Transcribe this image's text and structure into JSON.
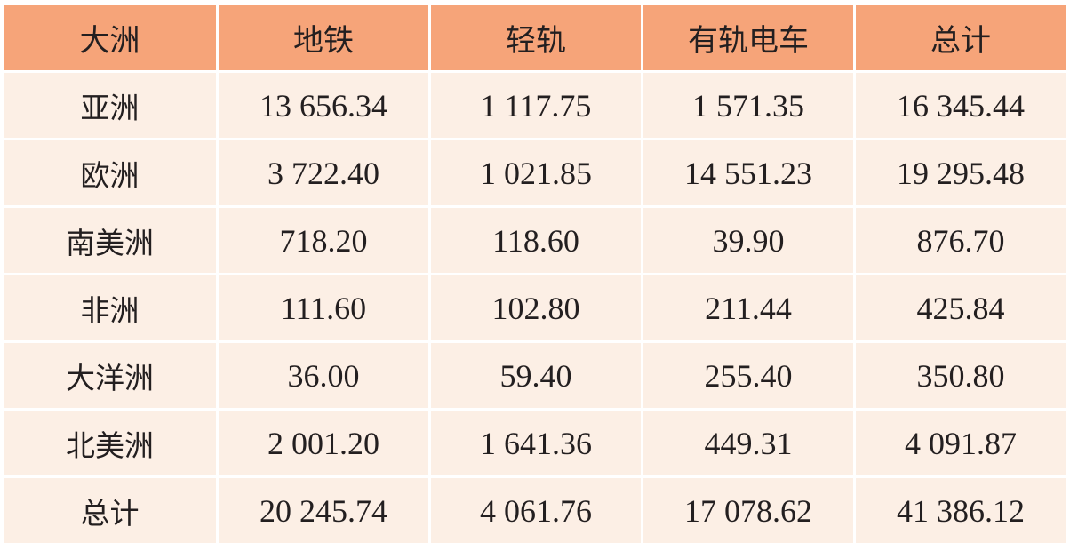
{
  "colors": {
    "header_bg": "#f6a479",
    "body_bg": "#fcefe5"
  },
  "table": {
    "headers": [
      "大洲",
      "地铁",
      "轻轨",
      "有轨电车",
      "总计"
    ],
    "rows": [
      [
        "亚洲",
        "13 656.34",
        "1 117.75",
        "1 571.35",
        "16 345.44"
      ],
      [
        "欧洲",
        "3 722.40",
        "1 021.85",
        "14 551.23",
        "19 295.48"
      ],
      [
        "南美洲",
        "718.20",
        "118.60",
        "39.90",
        "876.70"
      ],
      [
        "非洲",
        "111.60",
        "102.80",
        "211.44",
        "425.84"
      ],
      [
        "大洋洲",
        "36.00",
        "59.40",
        "255.40",
        "350.80"
      ],
      [
        "北美洲",
        "2 001.20",
        "1 641.36",
        "449.31",
        "4 091.87"
      ],
      [
        "总计",
        "20 245.74",
        "4 061.76",
        "17 078.62",
        "41 386.12"
      ]
    ]
  }
}
